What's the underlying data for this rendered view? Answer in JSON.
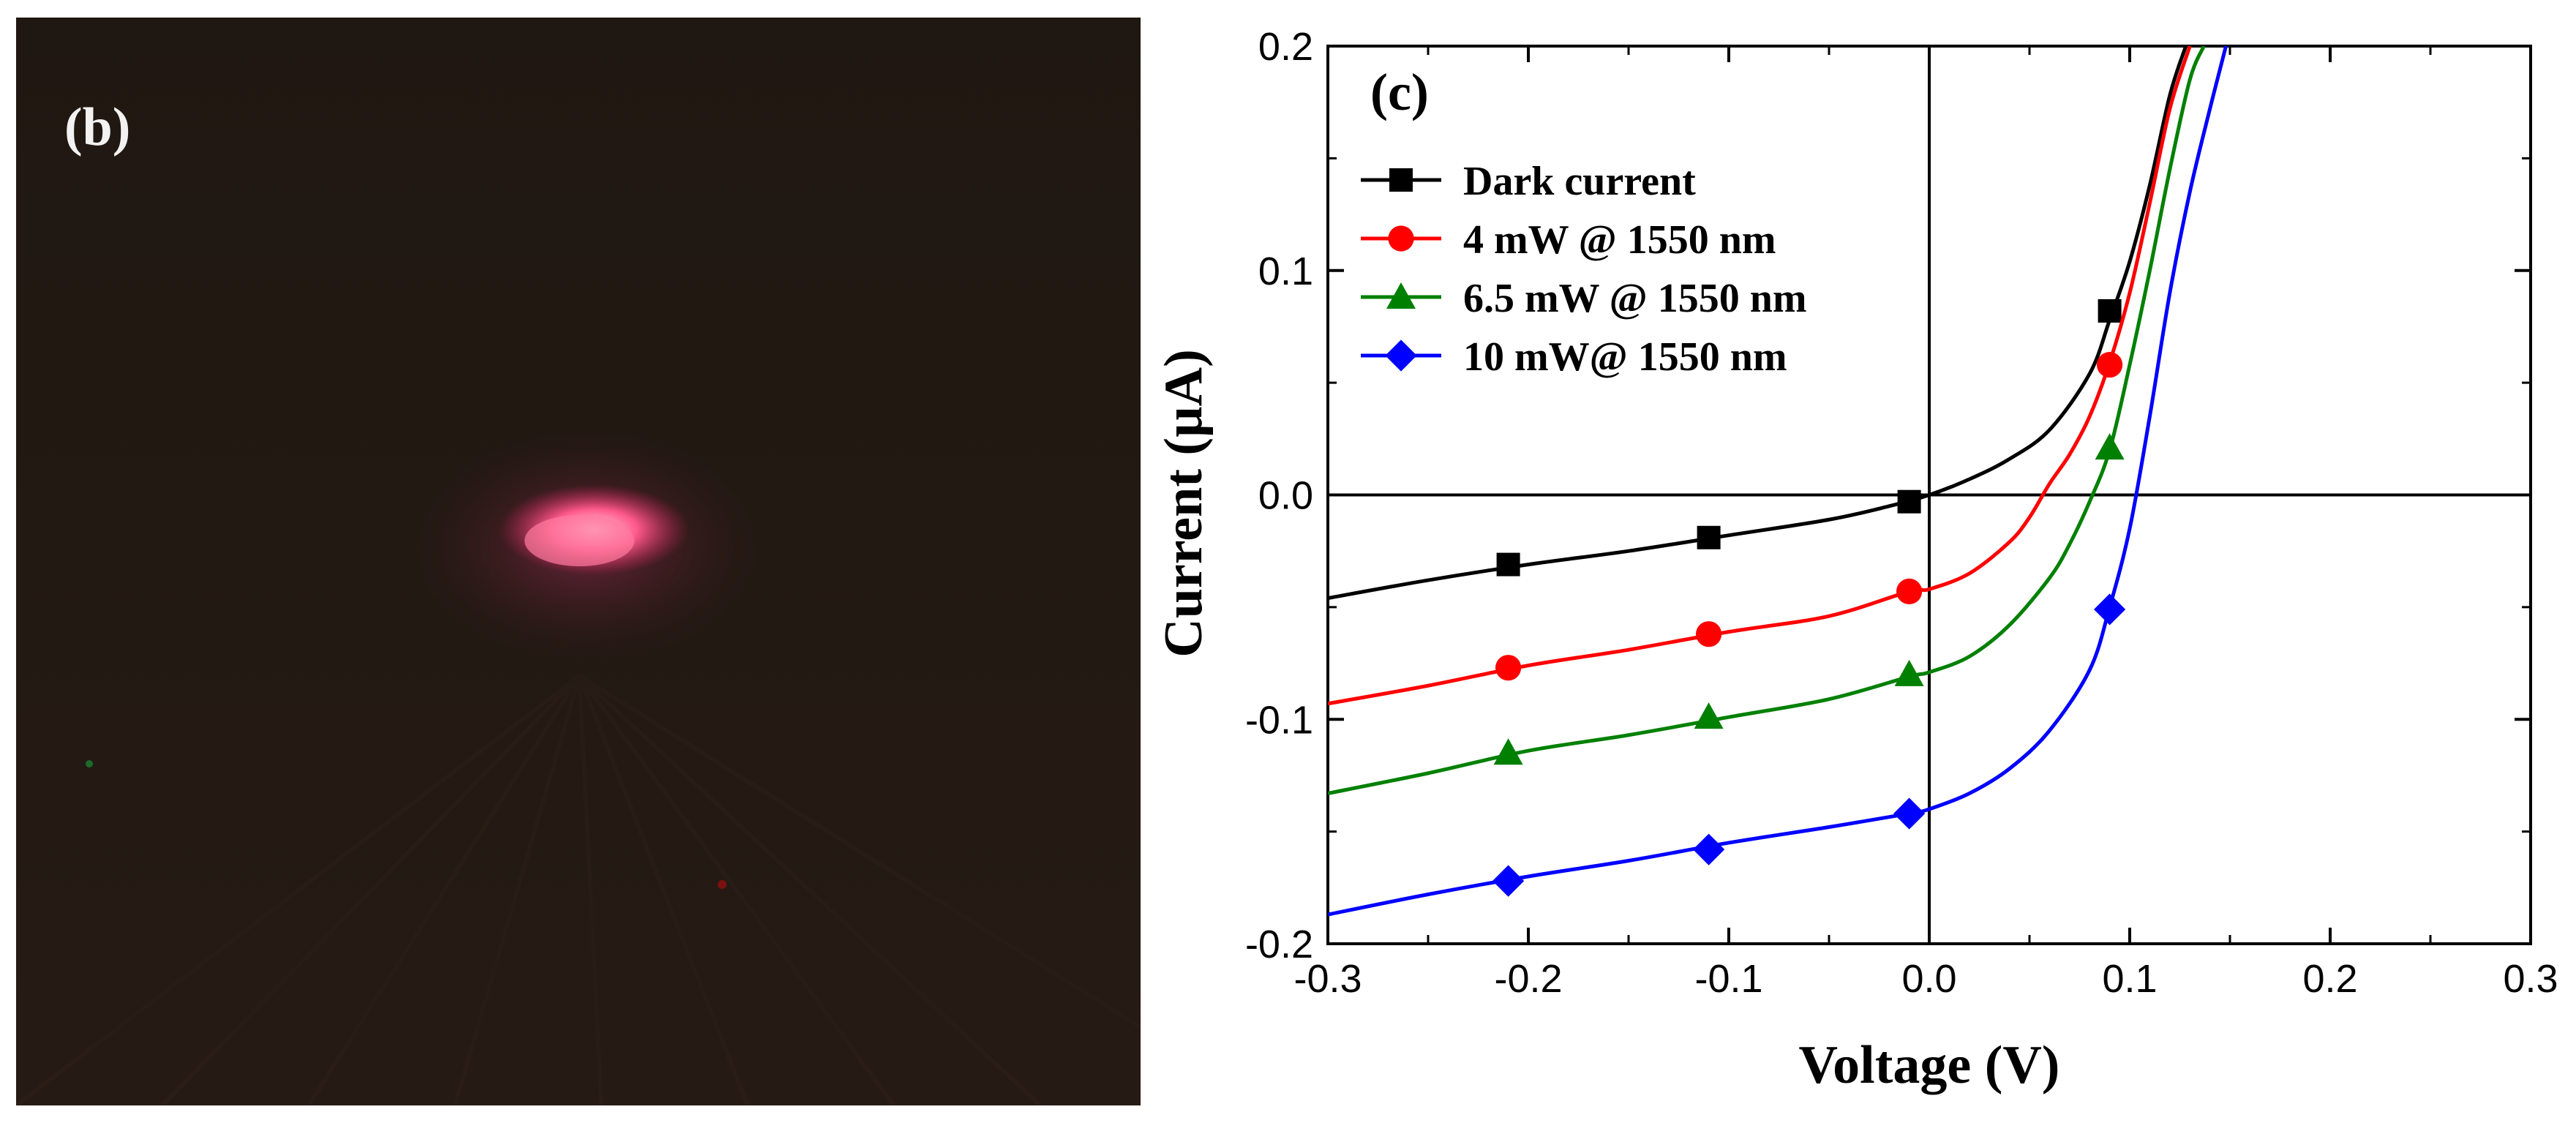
{
  "photo": {
    "label": "(b)",
    "description_icon": "light-spot-photo"
  },
  "chart_data": {
    "type": "line",
    "panel_label": "(c)",
    "xlabel": "Voltage (V)",
    "ylabel": "Current (µA)",
    "xlim": [
      -0.3,
      0.3
    ],
    "ylim": [
      -0.2,
      0.2
    ],
    "xticks": [
      -0.3,
      -0.2,
      -0.1,
      0.0,
      0.1,
      0.2,
      0.3
    ],
    "xtick_labels": [
      "-0.3",
      "-0.2",
      "-0.1",
      "0.0",
      "0.1",
      "0.2",
      "0.3"
    ],
    "yticks": [
      -0.2,
      -0.1,
      0.0,
      0.1,
      0.2
    ],
    "ytick_labels": [
      "-0.2",
      "-0.1",
      "0.0",
      "0.1",
      "0.2"
    ],
    "legend_position": "top-left",
    "series": [
      {
        "name": "Dark current",
        "color": "#000000",
        "marker": "square",
        "curve": [
          [
            -0.3,
            -0.046
          ],
          [
            -0.25,
            -0.038
          ],
          [
            -0.2,
            -0.031
          ],
          [
            -0.15,
            -0.025
          ],
          [
            -0.1,
            -0.018
          ],
          [
            -0.05,
            -0.011
          ],
          [
            -0.02,
            -0.005
          ],
          [
            0.0,
            0.0
          ],
          [
            0.02,
            0.007
          ],
          [
            0.04,
            0.016
          ],
          [
            0.06,
            0.029
          ],
          [
            0.08,
            0.054
          ],
          [
            0.09,
            0.078
          ],
          [
            0.1,
            0.104
          ],
          [
            0.11,
            0.138
          ],
          [
            0.12,
            0.178
          ],
          [
            0.128,
            0.2
          ]
        ],
        "markers": [
          [
            -0.21,
            -0.031
          ],
          [
            -0.11,
            -0.019
          ],
          [
            -0.01,
            -0.003
          ],
          [
            0.09,
            0.082
          ]
        ]
      },
      {
        "name": "4 mW @ 1550 nm",
        "color": "#ff0000",
        "marker": "circle",
        "curve": [
          [
            -0.3,
            -0.093
          ],
          [
            -0.25,
            -0.085
          ],
          [
            -0.2,
            -0.076
          ],
          [
            -0.15,
            -0.069
          ],
          [
            -0.1,
            -0.061
          ],
          [
            -0.05,
            -0.054
          ],
          [
            -0.01,
            -0.043
          ],
          [
            0.0,
            -0.042
          ],
          [
            0.02,
            -0.035
          ],
          [
            0.04,
            -0.021
          ],
          [
            0.05,
            -0.01
          ],
          [
            0.06,
            0.005
          ],
          [
            0.07,
            0.018
          ],
          [
            0.08,
            0.035
          ],
          [
            0.09,
            0.059
          ],
          [
            0.1,
            0.09
          ],
          [
            0.11,
            0.13
          ],
          [
            0.12,
            0.172
          ],
          [
            0.13,
            0.2
          ]
        ],
        "markers": [
          [
            -0.21,
            -0.077
          ],
          [
            -0.11,
            -0.062
          ],
          [
            -0.01,
            -0.043
          ],
          [
            0.09,
            0.058
          ]
        ]
      },
      {
        "name": "6.5 mW @ 1550 nm",
        "color": "#008000",
        "marker": "triangle",
        "curve": [
          [
            -0.3,
            -0.133
          ],
          [
            -0.25,
            -0.124
          ],
          [
            -0.2,
            -0.114
          ],
          [
            -0.15,
            -0.107
          ],
          [
            -0.1,
            -0.099
          ],
          [
            -0.05,
            -0.091
          ],
          [
            -0.01,
            -0.081
          ],
          [
            0.0,
            -0.079
          ],
          [
            0.02,
            -0.072
          ],
          [
            0.04,
            -0.058
          ],
          [
            0.06,
            -0.037
          ],
          [
            0.07,
            -0.022
          ],
          [
            0.08,
            -0.003
          ],
          [
            0.09,
            0.02
          ],
          [
            0.1,
            0.058
          ],
          [
            0.11,
            0.1
          ],
          [
            0.12,
            0.145
          ],
          [
            0.13,
            0.185
          ],
          [
            0.137,
            0.2
          ]
        ],
        "markers": [
          [
            -0.21,
            -0.115
          ],
          [
            -0.11,
            -0.099
          ],
          [
            -0.01,
            -0.08
          ],
          [
            0.09,
            0.021
          ]
        ]
      },
      {
        "name": "10 mW@ 1550 nm",
        "color": "#0000ff",
        "marker": "diamond",
        "curve": [
          [
            -0.3,
            -0.187
          ],
          [
            -0.25,
            -0.178
          ],
          [
            -0.2,
            -0.17
          ],
          [
            -0.15,
            -0.163
          ],
          [
            -0.1,
            -0.155
          ],
          [
            -0.05,
            -0.148
          ],
          [
            -0.01,
            -0.142
          ],
          [
            0.0,
            -0.14
          ],
          [
            0.02,
            -0.133
          ],
          [
            0.04,
            -0.122
          ],
          [
            0.06,
            -0.105
          ],
          [
            0.08,
            -0.078
          ],
          [
            0.09,
            -0.05
          ],
          [
            0.1,
            -0.015
          ],
          [
            0.11,
            0.035
          ],
          [
            0.12,
            0.09
          ],
          [
            0.13,
            0.135
          ],
          [
            0.14,
            0.172
          ],
          [
            0.148,
            0.2
          ]
        ],
        "markers": [
          [
            -0.21,
            -0.172
          ],
          [
            -0.11,
            -0.158
          ],
          [
            -0.01,
            -0.142
          ],
          [
            0.09,
            -0.051
          ]
        ]
      }
    ]
  }
}
